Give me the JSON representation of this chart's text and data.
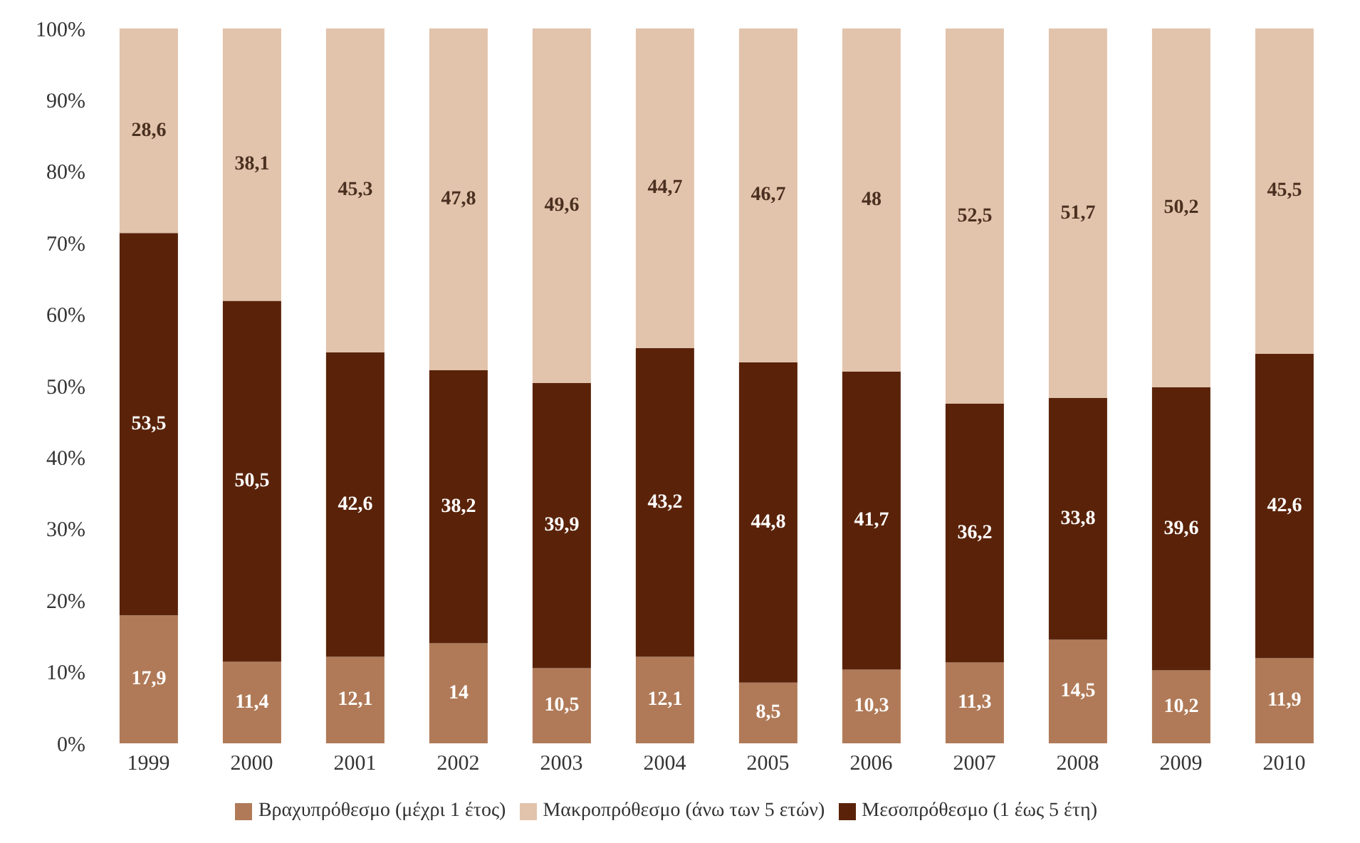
{
  "chart_data": {
    "type": "bar",
    "stacked": true,
    "categories": [
      "1999",
      "2000",
      "2001",
      "2002",
      "2003",
      "2004",
      "2005",
      "2006",
      "2007",
      "2008",
      "2009",
      "2010"
    ],
    "ylim": [
      0,
      100
    ],
    "yticks": [
      {
        "value": 0,
        "label": "0%"
      },
      {
        "value": 10,
        "label": "10%"
      },
      {
        "value": 20,
        "label": "20%"
      },
      {
        "value": 30,
        "label": "30%"
      },
      {
        "value": 40,
        "label": "40%"
      },
      {
        "value": 50,
        "label": "50%"
      },
      {
        "value": 60,
        "label": "60%"
      },
      {
        "value": 70,
        "label": "70%"
      },
      {
        "value": 80,
        "label": "80%"
      },
      {
        "value": 90,
        "label": "90%"
      },
      {
        "value": 100,
        "label": "100%"
      }
    ],
    "legend": "bottom",
    "grid": false,
    "series": [
      {
        "name": "Βραχυπρόθεσμο (μέχρι 1 έτος)",
        "color": "#b07a58",
        "values": [
          17.9,
          11.4,
          12.1,
          14,
          10.5,
          12.1,
          8.5,
          10.3,
          11.3,
          14.5,
          10.2,
          11.9
        ],
        "value_labels": [
          "17,9",
          "11,4",
          "12,1",
          "14",
          "10,5",
          "12,1",
          "8,5",
          "10,3",
          "11,3",
          "14,5",
          "10,2",
          "11,9"
        ]
      },
      {
        "name": "Μεσοπρόθεσμο (1 έως 5 έτη)",
        "color": "#5a2309",
        "values": [
          53.5,
          50.5,
          42.6,
          38.2,
          39.9,
          43.2,
          44.8,
          41.7,
          36.2,
          33.8,
          39.6,
          42.6
        ],
        "value_labels": [
          "53,5",
          "50,5",
          "42,6",
          "38,2",
          "39,9",
          "43,2",
          "44,8",
          "41,7",
          "36,2",
          "33,8",
          "39,6",
          "42,6"
        ]
      },
      {
        "name": "Μακροπρόθεσμο (άνω των 5 ετών)",
        "color": "#e2c3ab",
        "values": [
          28.6,
          38.1,
          45.3,
          47.8,
          49.6,
          44.7,
          46.7,
          48,
          52.5,
          51.7,
          50.2,
          45.5
        ],
        "value_labels": [
          "28,6",
          "38,1",
          "45,3",
          "47,8",
          "49,6",
          "44,7",
          "46,7",
          "48",
          "52,5",
          "51,7",
          "50,2",
          "45,5"
        ]
      }
    ]
  }
}
